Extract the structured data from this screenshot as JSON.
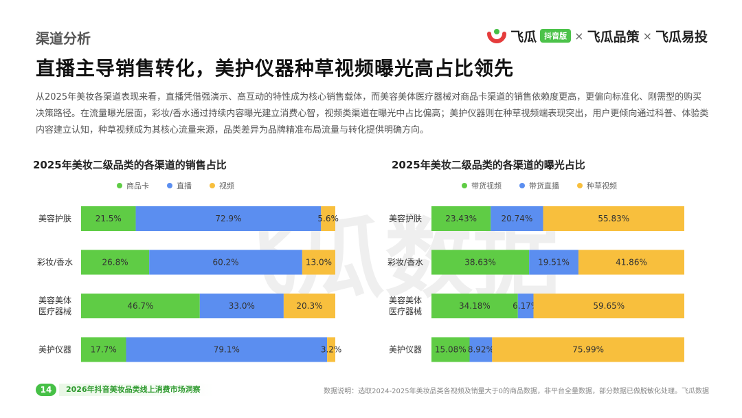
{
  "section_label": "渠道分析",
  "brand": {
    "name1": "飞瓜",
    "badge": "抖音版",
    "sep": "×",
    "name2": "飞瓜品策",
    "name3": "飞瓜易投"
  },
  "headline": "直播主导销售转化，美护仪器种草视频曝光高占比领先",
  "summary": "从2025年美妆各渠道表现来看，直播凭借强演示、高互动的特性成为核心销售载体，而美容美体医疗器械对商品卡渠道的销售依赖度更高，更偏向标准化、刚需型的购买决策路径。在流量曝光层面，彩妆/香水通过持续内容曝光建立消费心智，视频类渠道在曝光中占比偏高；美护仪器则在种草视频端表现突出，用户更倾向通过科普、体验类内容建立认知，种草视频成为其核心流量来源，品类差异为品牌精准布局流量与转化提供明确方向。",
  "watermark": "飞瓜数据",
  "colors": {
    "green": "#5fcc45",
    "blue": "#5b8ef0",
    "yellow": "#f8bf3d"
  },
  "chart_data": [
    {
      "type": "bar",
      "orientation": "horizontal",
      "stacked": true,
      "title": "2025年美妆二级品类的各渠道的销售占比",
      "categories": [
        "美容护肤",
        "彩妆/香水",
        "美容美体医疗器械",
        "美护仪器"
      ],
      "category_lines": [
        [
          "美容护肤"
        ],
        [
          "彩妆/香水"
        ],
        [
          "美容美体",
          "医疗器械"
        ],
        [
          "美护仪器"
        ]
      ],
      "series": [
        {
          "name": "商品卡",
          "color": "#5fcc45",
          "values": [
            21.5,
            26.8,
            46.7,
            17.7
          ],
          "labels": [
            "21.5%",
            "26.8%",
            "46.7%",
            "17.7%"
          ]
        },
        {
          "name": "直播",
          "color": "#5b8ef0",
          "values": [
            72.9,
            60.2,
            33.0,
            79.1
          ],
          "labels": [
            "72.9%",
            "60.2%",
            "33.0%",
            "79.1%"
          ]
        },
        {
          "name": "视频",
          "color": "#f8bf3d",
          "values": [
            5.6,
            13.0,
            20.3,
            3.2
          ],
          "labels": [
            "5.6%",
            "13.0%",
            "20.3%",
            "3.2%"
          ]
        }
      ],
      "legend_position": "top-center",
      "xlim": [
        0,
        100
      ]
    },
    {
      "type": "bar",
      "orientation": "horizontal",
      "stacked": true,
      "title": "2025年美妆二级品类的各渠道的曝光占比",
      "categories": [
        "美容护肤",
        "彩妆/香水",
        "美容美体医疗器械",
        "美护仪器"
      ],
      "category_lines": [
        [
          "美容护肤"
        ],
        [
          "彩妆/香水"
        ],
        [
          "美容美体",
          "医疗器械"
        ],
        [
          "美护仪器"
        ]
      ],
      "series": [
        {
          "name": "带货视频",
          "color": "#5fcc45",
          "values": [
            23.43,
            38.63,
            34.18,
            15.08
          ],
          "labels": [
            "23.43%",
            "38.63%",
            "34.18%",
            "15.08%"
          ]
        },
        {
          "name": "带货直播",
          "color": "#5b8ef0",
          "values": [
            20.74,
            19.51,
            6.17,
            8.92
          ],
          "labels": [
            "20.74%",
            "19.51%",
            "6.17%",
            "8.92%"
          ]
        },
        {
          "name": "种草视频",
          "color": "#f8bf3d",
          "values": [
            55.83,
            41.86,
            59.65,
            75.99
          ],
          "labels": [
            "55.83%",
            "41.86%",
            "59.65%",
            "75.99%"
          ]
        }
      ],
      "legend_position": "top-center",
      "xlim": [
        0,
        100
      ]
    }
  ],
  "footer": {
    "page_number": "14",
    "report_title": "2026年抖音美妆品类线上消费市场洞察",
    "source": "数据说明：选取2024-2025年美妆品类各视频及销量大于0的商品数据，非平台全量数据，部分数据已做脱敏化处理。飞瓜数据"
  }
}
